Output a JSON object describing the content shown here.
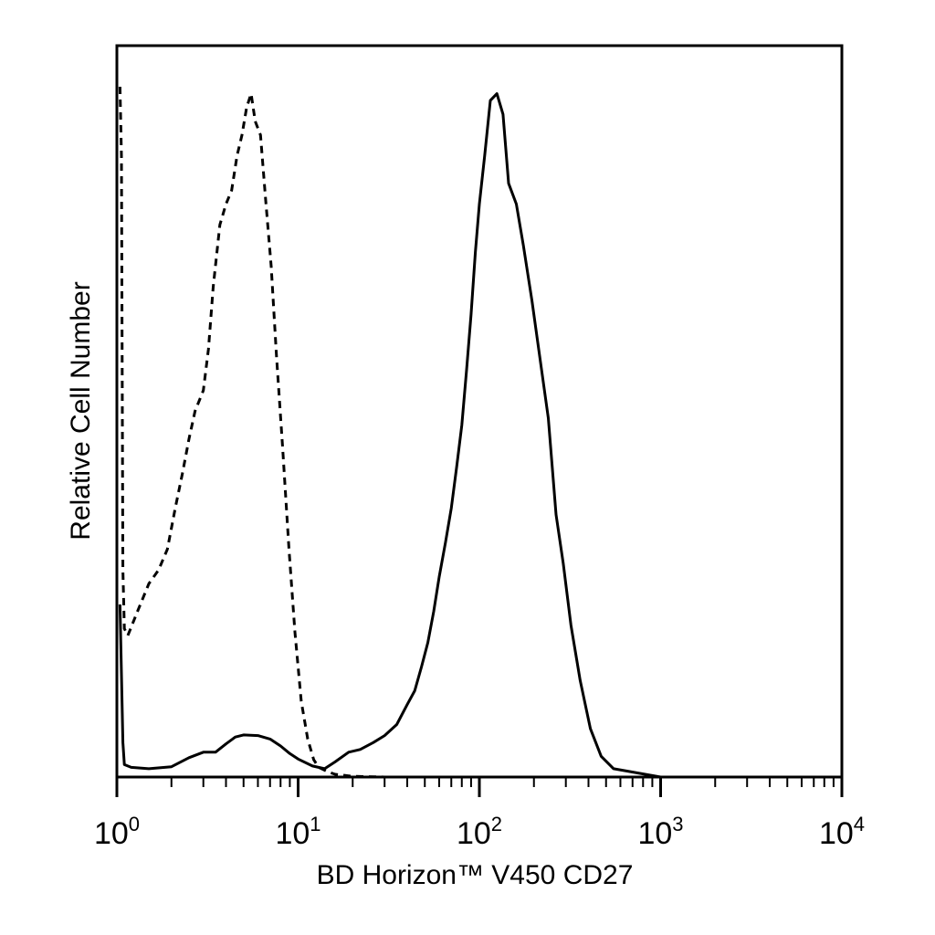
{
  "chart_data": {
    "type": "line",
    "title": "",
    "xlabel": "BD Horizon™ V450 CD27",
    "ylabel": "Relative Cell Number",
    "x_scale": "log",
    "xlim": [
      1,
      10000
    ],
    "ylim": [
      0,
      100
    ],
    "x_ticks": [
      {
        "value": 1,
        "base": "10",
        "exp": "0"
      },
      {
        "value": 10,
        "base": "10",
        "exp": "1"
      },
      {
        "value": 100,
        "base": "10",
        "exp": "2"
      },
      {
        "value": 1000,
        "base": "10",
        "exp": "3"
      },
      {
        "value": 10000,
        "base": "10",
        "exp": "4"
      }
    ],
    "y_ticks": [],
    "grid": false,
    "legend": "none",
    "series": [
      {
        "style": "dashed",
        "color": "#000000",
        "x": [
          1.04,
          1.06,
          1.08,
          1.1,
          1.15,
          1.3,
          1.5,
          1.7,
          1.9,
          2.1,
          2.3,
          2.5,
          2.7,
          3.0,
          3.2,
          3.4,
          3.7,
          4.0,
          4.3,
          4.6,
          4.9,
          5.2,
          5.5,
          5.8,
          6.2,
          6.6,
          7.1,
          7.6,
          8.2,
          8.9,
          9.6,
          10.4,
          11.3,
          12.2,
          13.0,
          14.5,
          16,
          20,
          30,
          50,
          100,
          200,
          500,
          1000,
          5000,
          10000
        ],
        "y": [
          100,
          90,
          30,
          21.5,
          20.5,
          24,
          28,
          30,
          33,
          39,
          44,
          49,
          53,
          56,
          62,
          71,
          80,
          83,
          85,
          90,
          93,
          97,
          99,
          95,
          93,
          84,
          74,
          61,
          48,
          33,
          21,
          11,
          5.5,
          2.5,
          1.4,
          0.8,
          0.4,
          0.1,
          0,
          0,
          0,
          0,
          0,
          0,
          0,
          0
        ]
      },
      {
        "style": "solid",
        "color": "#000000",
        "x": [
          1.04,
          1.06,
          1.08,
          1.1,
          1.2,
          1.5,
          2.0,
          2.5,
          3.0,
          3.5,
          4.0,
          4.5,
          5.0,
          6.0,
          7.0,
          8.0,
          9.0,
          10.0,
          12.0,
          14.0,
          16.0,
          19.0,
          22.0,
          26.0,
          30.0,
          35.0,
          40.0,
          44.0,
          48.0,
          52.0,
          56.0,
          60.0,
          65.0,
          70.0,
          75.0,
          80.0,
          85.0,
          90.0,
          95.0,
          100.0,
          107.0,
          115.0,
          125.0,
          135.0,
          145.0,
          160.0,
          175.0,
          195.0,
          215.0,
          240.0,
          265.0,
          290.0,
          320.0,
          360.0,
          410.0,
          470.0,
          550.0,
          1000,
          10000
        ],
        "y": [
          25,
          15,
          5,
          1.8,
          1.4,
          1.2,
          1.5,
          2.8,
          3.6,
          3.6,
          4.8,
          5.8,
          6.1,
          6.0,
          5.5,
          4.5,
          3.4,
          2.6,
          1.6,
          1.2,
          2.2,
          3.6,
          4.0,
          5.0,
          6.0,
          7.6,
          10.5,
          12.5,
          16,
          19.5,
          24,
          29,
          34,
          39,
          45,
          51,
          59,
          67,
          76,
          83,
          90,
          98,
          99,
          96,
          86,
          83,
          77,
          69,
          61,
          52,
          38,
          31,
          22,
          14,
          7,
          3,
          1.2,
          0,
          0
        ]
      }
    ]
  }
}
